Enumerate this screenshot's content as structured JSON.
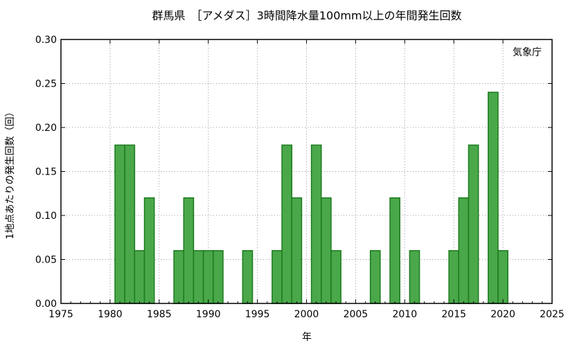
{
  "chart_data": {
    "type": "bar",
    "title": "群馬県　［アメダス］3時間降水量100mm以上の年間発生回数",
    "xlabel": "年",
    "ylabel": "1地点あたりの発生回数（回）",
    "annotation": "気象庁",
    "xlim": [
      1975,
      2025
    ],
    "ylim": [
      0,
      0.3
    ],
    "x_ticks": [
      "1975",
      "1980",
      "1985",
      "1990",
      "1995",
      "2000",
      "2005",
      "2010",
      "2015",
      "2020",
      "2025"
    ],
    "y_ticks": [
      "0.00",
      "0.05",
      "0.10",
      "0.15",
      "0.20",
      "0.25",
      "0.30"
    ],
    "grid": true,
    "bar_color": "#4aa84a",
    "bar_edge_color": "#1b7a1b",
    "bars": [
      {
        "year": 1981,
        "value": 0.18
      },
      {
        "year": 1982,
        "value": 0.18
      },
      {
        "year": 1983,
        "value": 0.06
      },
      {
        "year": 1984,
        "value": 0.12
      },
      {
        "year": 1987,
        "value": 0.06
      },
      {
        "year": 1988,
        "value": 0.12
      },
      {
        "year": 1989,
        "value": 0.06
      },
      {
        "year": 1990,
        "value": 0.06
      },
      {
        "year": 1991,
        "value": 0.06
      },
      {
        "year": 1994,
        "value": 0.06
      },
      {
        "year": 1997,
        "value": 0.06
      },
      {
        "year": 1998,
        "value": 0.18
      },
      {
        "year": 1999,
        "value": 0.12
      },
      {
        "year": 2001,
        "value": 0.18
      },
      {
        "year": 2002,
        "value": 0.12
      },
      {
        "year": 2003,
        "value": 0.06
      },
      {
        "year": 2007,
        "value": 0.06
      },
      {
        "year": 2009,
        "value": 0.12
      },
      {
        "year": 2011,
        "value": 0.06
      },
      {
        "year": 2015,
        "value": 0.06
      },
      {
        "year": 2016,
        "value": 0.12
      },
      {
        "year": 2017,
        "value": 0.18
      },
      {
        "year": 2019,
        "value": 0.24
      },
      {
        "year": 2020,
        "value": 0.06
      }
    ]
  }
}
